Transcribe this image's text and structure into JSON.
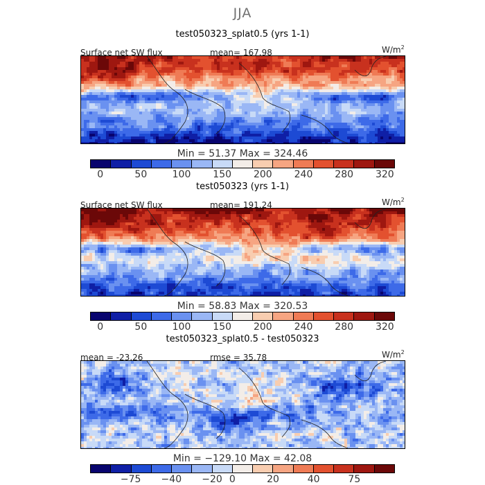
{
  "title": "JJA",
  "panels": [
    {
      "subtitle": "test050323_splat0.5 (yrs 1-1)",
      "left_label": "Surface net SW flux",
      "stat_text": "mean= 167.98",
      "units": "W/m",
      "units_power": "2",
      "minmax": "Min =  51.37  Max = 324.46",
      "ticks": [
        "0",
        "50",
        "100",
        "150",
        "200",
        "240",
        "280",
        "320"
      ]
    },
    {
      "subtitle": "test050323 (yrs 1-1)",
      "left_label": "Surface net SW flux",
      "stat_text": "mean= 191.24",
      "units": "W/m",
      "units_power": "2",
      "minmax": "Min =  58.83  Max = 320.53",
      "ticks": [
        "0",
        "50",
        "100",
        "150",
        "200",
        "240",
        "280",
        "320"
      ]
    },
    {
      "subtitle": "test050323_splat0.5 - test050323",
      "left_label": "mean = -23.26",
      "stat_text": "rmse =  35.78",
      "units": "W/m",
      "units_power": "2",
      "minmax": "Min = −129.10  Max =  42.08",
      "ticks": [
        "−75",
        "−40",
        "−20",
        "0",
        "20",
        "40",
        "75"
      ]
    }
  ],
  "colorbar_colors": [
    "#08046e",
    "#0f1fa6",
    "#1d4ad4",
    "#3d6ae8",
    "#6a91f0",
    "#9ab7f5",
    "#c8daf7",
    "#f3ede8",
    "#f8cdb0",
    "#f6a582",
    "#ef7b55",
    "#e3512f",
    "#c8311e",
    "#9e1710",
    "#6b0808"
  ],
  "chart_data": [
    {
      "type": "heatmap",
      "title": "test050323_splat0.5 (yrs 1-1)",
      "variable": "Surface net SW flux",
      "units": "W/m^2",
      "mean": 167.98,
      "min": 51.37,
      "max": 324.46,
      "colorbar_levels": [
        0,
        25,
        50,
        75,
        100,
        125,
        150,
        175,
        200,
        220,
        240,
        260,
        280,
        300,
        320
      ],
      "colorbar_tick_labels": [
        "0",
        "50",
        "100",
        "150",
        "200",
        "240",
        "280",
        "320"
      ]
    },
    {
      "type": "heatmap",
      "title": "test050323 (yrs 1-1)",
      "variable": "Surface net SW flux",
      "units": "W/m^2",
      "mean": 191.24,
      "min": 58.83,
      "max": 320.53,
      "colorbar_levels": [
        0,
        25,
        50,
        75,
        100,
        125,
        150,
        175,
        200,
        220,
        240,
        260,
        280,
        300,
        320
      ],
      "colorbar_tick_labels": [
        "0",
        "50",
        "100",
        "150",
        "200",
        "240",
        "280",
        "320"
      ]
    },
    {
      "type": "heatmap",
      "title": "test050323_splat0.5 - test050323",
      "units": "W/m^2",
      "mean": -23.26,
      "rmse": 35.78,
      "min": -129.1,
      "max": 42.08,
      "colorbar_levels": [
        -100,
        -75,
        -60,
        -40,
        -30,
        -20,
        -10,
        0,
        10,
        20,
        30,
        40,
        60,
        75,
        100
      ],
      "colorbar_tick_labels": [
        "-75",
        "-40",
        "-20",
        "0",
        "20",
        "40",
        "75"
      ]
    }
  ]
}
